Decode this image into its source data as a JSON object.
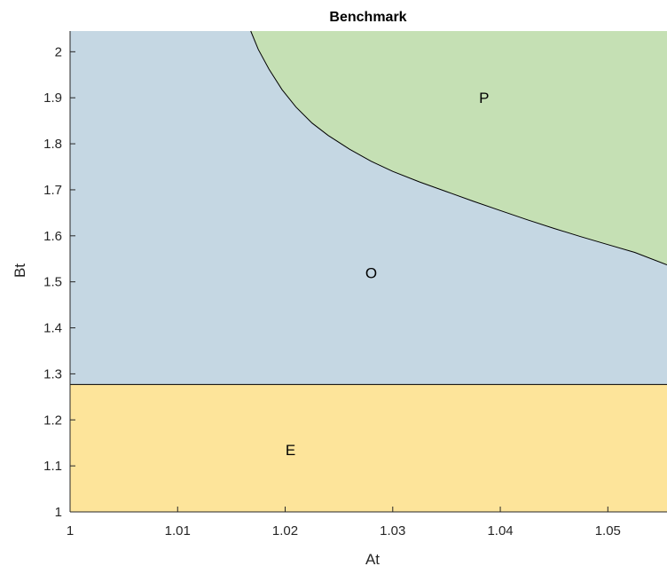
{
  "chart_data": {
    "type": "area",
    "title": "Benchmark",
    "xlabel": "At",
    "ylabel": "Bt",
    "xlim": [
      1,
      1.0555
    ],
    "ylim": [
      1,
      2.045
    ],
    "xticks": [
      1,
      1.01,
      1.02,
      1.03,
      1.04,
      1.05
    ],
    "yticks": [
      1,
      1.1,
      1.2,
      1.3,
      1.4,
      1.5,
      1.6,
      1.7,
      1.8,
      1.9,
      2
    ],
    "xtick_labels": [
      "1",
      "1.01",
      "1.02",
      "1.03",
      "1.04",
      "1.05"
    ],
    "ytick_labels": [
      "1",
      "1.1",
      "1.2",
      "1.3",
      "1.4",
      "1.5",
      "1.6",
      "1.7",
      "1.8",
      "1.9",
      "2"
    ],
    "grid": false,
    "regions": [
      {
        "label": "E",
        "color": "#fde49a",
        "label_at": [
          1.0205,
          1.135
        ]
      },
      {
        "label": "O",
        "color": "#c5d7e3",
        "label_at": [
          1.028,
          1.52
        ]
      },
      {
        "label": "P",
        "color": "#c5e0b4",
        "label_at": [
          1.0385,
          1.9
        ]
      }
    ],
    "boundary_E_O": {
      "y": 1.277
    },
    "boundary_O_P": {
      "x": [
        1.0168,
        1.0175,
        1.0185,
        1.0197,
        1.021,
        1.0225,
        1.024,
        1.026,
        1.028,
        1.03,
        1.0325,
        1.035,
        1.0375,
        1.04,
        1.0425,
        1.045,
        1.0475,
        1.05,
        1.0525,
        1.0555
      ],
      "y": [
        2.045,
        2.005,
        1.962,
        1.918,
        1.88,
        1.845,
        1.818,
        1.788,
        1.762,
        1.74,
        1.717,
        1.696,
        1.675,
        1.655,
        1.635,
        1.616,
        1.598,
        1.581,
        1.564,
        1.537
      ]
    }
  }
}
